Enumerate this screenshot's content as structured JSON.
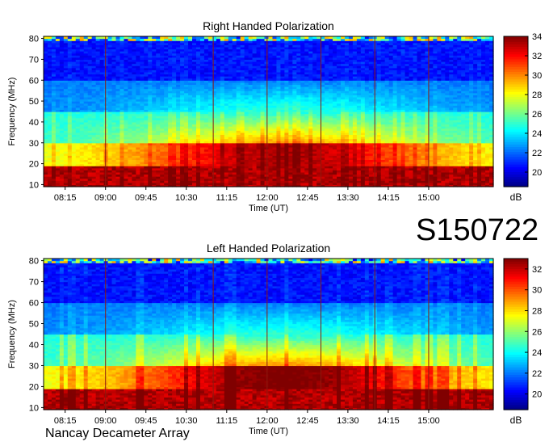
{
  "station_id": "S150722",
  "instrument": "Nancay Decameter Array",
  "chart_data": [
    {
      "type": "heatmap",
      "title": "Right Handed Polarization",
      "xlabel": "Time (UT)",
      "ylabel": "Frequency (MHz)",
      "xticks": [
        "08:15",
        "09:00",
        "09:45",
        "10:30",
        "11:15",
        "12:00",
        "12:45",
        "13:30",
        "14:15",
        "15:00"
      ],
      "yticks": [
        10,
        20,
        30,
        40,
        50,
        60,
        70,
        80
      ],
      "ylim": [
        9,
        81
      ],
      "xlim_hours": [
        7.85,
        16.2
      ],
      "colorbar": {
        "label": "dB",
        "ticks": [
          20,
          22,
          24,
          26,
          28,
          30,
          32,
          34
        ],
        "range": [
          18.5,
          34
        ]
      },
      "colormap": "jet"
    },
    {
      "type": "heatmap",
      "title": "Left Handed Polarization",
      "xlabel": "Time (UT)",
      "ylabel": "Frequency (MHz)",
      "xticks": [
        "08:15",
        "09:00",
        "09:45",
        "10:30",
        "11:15",
        "12:00",
        "12:45",
        "13:30",
        "14:15",
        "15:00"
      ],
      "yticks": [
        10,
        20,
        30,
        40,
        50,
        60,
        70,
        80
      ],
      "ylim": [
        9,
        81
      ],
      "xlim_hours": [
        7.85,
        16.2
      ],
      "colorbar": {
        "label": "dB",
        "ticks": [
          20,
          22,
          24,
          26,
          28,
          30,
          32
        ],
        "range": [
          18.5,
          33
        ]
      },
      "colormap": "jet"
    }
  ]
}
